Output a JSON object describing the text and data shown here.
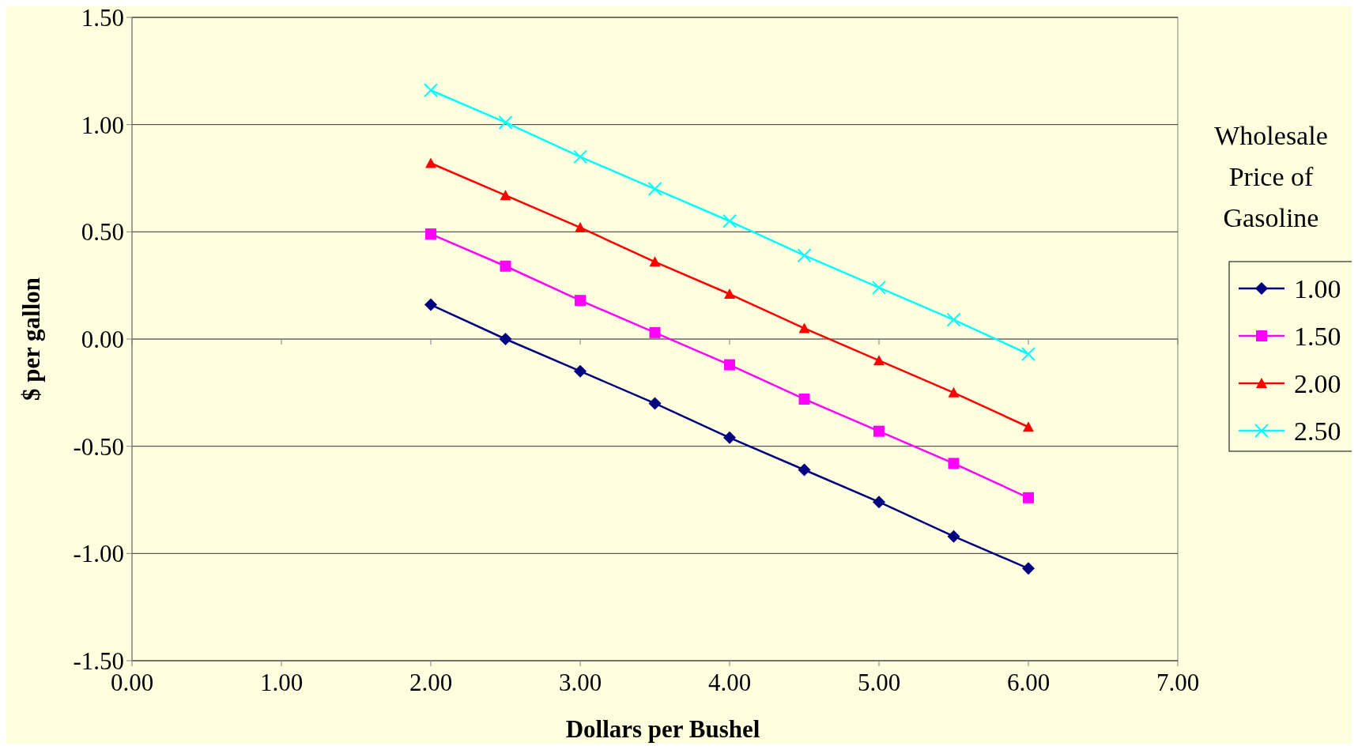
{
  "chart_data": {
    "type": "line",
    "xlabel": "Dollars per Bushel",
    "ylabel": "$ per gallon",
    "legend_title": "Wholesale Price of Gasoline",
    "legend": "right",
    "grid": "y",
    "x": [
      2,
      2.5,
      3,
      3.5,
      4,
      4.5,
      5,
      5.5,
      6
    ],
    "xlim": [
      0,
      7
    ],
    "xticks": [
      {
        "value": 0,
        "label": "0.00"
      },
      {
        "value": 1,
        "label": "1.00"
      },
      {
        "value": 2,
        "label": "2.00"
      },
      {
        "value": 3,
        "label": "3.00"
      },
      {
        "value": 4,
        "label": "4.00"
      },
      {
        "value": 5,
        "label": "5.00"
      },
      {
        "value": 6,
        "label": "6.00"
      },
      {
        "value": 7,
        "label": "7.00"
      }
    ],
    "ylim": [
      -1.5,
      1.5
    ],
    "yticks": [
      {
        "value": -1.5,
        "label": "-1.50"
      },
      {
        "value": -1,
        "label": "-1.00"
      },
      {
        "value": -0.5,
        "label": "-0.50"
      },
      {
        "value": 0,
        "label": "0.00"
      },
      {
        "value": 0.5,
        "label": "0.50"
      },
      {
        "value": 1,
        "label": "1.00"
      },
      {
        "value": 1.5,
        "label": "1.50"
      }
    ],
    "series": [
      {
        "name": "1.00",
        "color": "#000080",
        "marker": "diamond",
        "values": [
          0.16,
          0.0,
          -0.15,
          -0.3,
          -0.46,
          -0.61,
          -0.76,
          -0.92,
          -1.07
        ]
      },
      {
        "name": "1.50",
        "color": "#ff00ff",
        "marker": "square",
        "values": [
          0.49,
          0.34,
          0.18,
          0.03,
          -0.12,
          -0.28,
          -0.43,
          -0.58,
          -0.74
        ]
      },
      {
        "name": "2.00",
        "color": "#ff0000",
        "marker": "triangle",
        "values": [
          0.82,
          0.67,
          0.52,
          0.36,
          0.21,
          0.05,
          -0.1,
          -0.25,
          -0.41
        ]
      },
      {
        "name": "2.50",
        "color": "#00ffff",
        "marker": "cross",
        "values": [
          1.16,
          1.01,
          0.85,
          0.7,
          0.55,
          0.39,
          0.24,
          0.09,
          -0.07
        ]
      }
    ]
  }
}
